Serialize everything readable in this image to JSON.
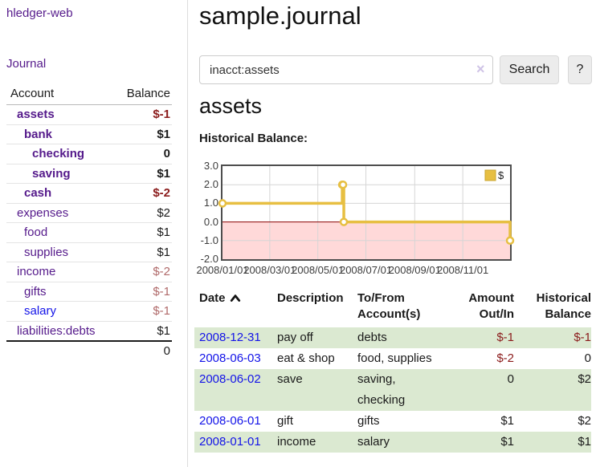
{
  "colors": {
    "brand_purple": "#551a8b",
    "link_blue": "#1313e8",
    "negative_strong": "#8b1c1c",
    "negative_dim": "#b06a6a",
    "register_stripe": "#dbe9d1",
    "button_bg": "#ececec",
    "chart_line": "#e7bf42",
    "chart_negative_bg": "#ffd9d9",
    "chart_zero_line": "#8b0000"
  },
  "sidebar": {
    "brand": "hledger-web",
    "journal_link": "Journal",
    "col_account": "Account",
    "col_balance": "Balance",
    "accounts": [
      {
        "label": "assets",
        "balance": "$-1",
        "depth": 1,
        "strong": true
      },
      {
        "label": "bank",
        "balance": "$1",
        "depth": 2,
        "strong": true
      },
      {
        "label": "checking",
        "balance": "0",
        "depth": 3,
        "strong": true
      },
      {
        "label": "saving",
        "balance": "$1",
        "depth": 3,
        "strong": true
      },
      {
        "label": "cash",
        "balance": "$-2",
        "depth": 2,
        "strong": true
      },
      {
        "label": "expenses",
        "balance": "$2",
        "depth": 1,
        "strong": false
      },
      {
        "label": "food",
        "balance": "$1",
        "depth": 2,
        "strong": false
      },
      {
        "label": "supplies",
        "balance": "$1",
        "depth": 2,
        "strong": false
      },
      {
        "label": "income",
        "balance": "$-2",
        "depth": 1,
        "strong": false
      },
      {
        "label": "gifts",
        "balance": "$-1",
        "depth": 2,
        "strong": false
      },
      {
        "label": "salary",
        "balance": "$-1",
        "depth": 2,
        "strong": false,
        "link_style": "unvisited"
      },
      {
        "label": "liabilities:debts",
        "balance": "$1",
        "depth": 1,
        "strong": false
      }
    ],
    "total": "0"
  },
  "main": {
    "title": "sample.journal",
    "search": {
      "value": "inacct:assets",
      "clear_glyph": "×",
      "search_label": "Search",
      "help_label": "?"
    },
    "account_heading": "assets",
    "section_label": "Historical Balance:"
  },
  "chart_data": {
    "type": "line",
    "step": true,
    "title": "Historical Balance",
    "x_start": "2008-01-01",
    "x_end": "2008-12-31",
    "ylim": [
      -2,
      3
    ],
    "y_ticks": [
      "3.0",
      "2.0",
      "1.0",
      "0.0",
      "-1.0",
      "-2.0"
    ],
    "x_ticks": [
      {
        "label": "2008/01/01",
        "date": "2008-01-01"
      },
      {
        "label": "2008/03/01",
        "date": "2008-03-01"
      },
      {
        "label": "2008/05/01",
        "date": "2008-05-01"
      },
      {
        "label": "2008/07/01",
        "date": "2008-07-01"
      },
      {
        "label": "2008/09/01",
        "date": "2008-09-01"
      },
      {
        "label": "2008/11/01",
        "date": "2008-11-01"
      }
    ],
    "series": [
      {
        "name": "$",
        "color": "#e7bf42",
        "points": [
          {
            "date": "2008-01-01",
            "value": 1
          },
          {
            "date": "2008-06-01",
            "value": 2
          },
          {
            "date": "2008-06-02",
            "value": 2
          },
          {
            "date": "2008-06-03",
            "value": 0
          },
          {
            "date": "2008-12-31",
            "value": -1
          }
        ]
      }
    ],
    "legend": {
      "label": "$",
      "position": "top-right"
    },
    "negative_region_highlight": true,
    "grid": true
  },
  "register": {
    "headers": {
      "date": "Date",
      "description": "Description",
      "accounts": [
        "To/From",
        "Account(s)"
      ],
      "amount": [
        "Amount",
        "Out/In"
      ],
      "balance": [
        "Historical",
        "Balance"
      ]
    },
    "rows": [
      {
        "date": "2008-12-31",
        "description": "pay off",
        "accounts": "debts",
        "amount": "$-1",
        "balance": "$-1"
      },
      {
        "date": "2008-06-03",
        "description": "eat & shop",
        "accounts": "food, supplies",
        "amount": "$-2",
        "balance": "0"
      },
      {
        "date": "2008-06-02",
        "description": "save",
        "accounts": "saving, checking",
        "amount": "0",
        "balance": "$2"
      },
      {
        "date": "2008-06-01",
        "description": "gift",
        "accounts": "gifts",
        "amount": "$1",
        "balance": "$2"
      },
      {
        "date": "2008-01-01",
        "description": "income",
        "accounts": "salary",
        "amount": "$1",
        "balance": "$1"
      }
    ]
  }
}
